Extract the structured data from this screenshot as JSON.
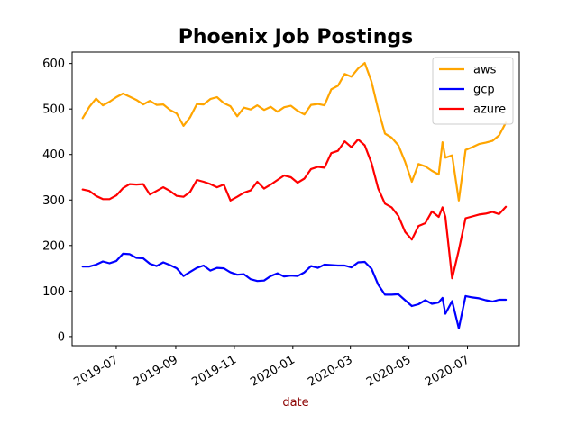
{
  "chart_data": {
    "type": "line",
    "title": "Phoenix Job Postings",
    "xlabel": "date",
    "ylabel": "",
    "xlim": [
      "2019-05-16",
      "2020-08-24"
    ],
    "ylim": [
      -20,
      625
    ],
    "yticks": [
      0,
      100,
      200,
      300,
      400,
      500,
      600
    ],
    "xticks": [
      {
        "date": "2019-07-01",
        "label": "2019-07"
      },
      {
        "date": "2019-09-01",
        "label": "2019-09"
      },
      {
        "date": "2019-11-01",
        "label": "2019-11"
      },
      {
        "date": "2020-01-01",
        "label": "2020-01"
      },
      {
        "date": "2020-03-01",
        "label": "2020-03"
      },
      {
        "date": "2020-05-01",
        "label": "2020-05"
      },
      {
        "date": "2020-07-01",
        "label": "2020-07"
      }
    ],
    "grid": false,
    "legend_position": "top-right",
    "series": [
      {
        "name": "aws",
        "color": "#ffa500",
        "points": [
          [
            "2019-05-27",
            480
          ],
          [
            "2019-06-03",
            505
          ],
          [
            "2019-06-10",
            523
          ],
          [
            "2019-06-17",
            508
          ],
          [
            "2019-06-24",
            516
          ],
          [
            "2019-07-01",
            526
          ],
          [
            "2019-07-08",
            534
          ],
          [
            "2019-07-15",
            527
          ],
          [
            "2019-07-22",
            520
          ],
          [
            "2019-07-29",
            510
          ],
          [
            "2019-08-05",
            518
          ],
          [
            "2019-08-12",
            509
          ],
          [
            "2019-08-19",
            510
          ],
          [
            "2019-08-26",
            498
          ],
          [
            "2019-09-02",
            490
          ],
          [
            "2019-09-09",
            463
          ],
          [
            "2019-09-16",
            482
          ],
          [
            "2019-09-23",
            511
          ],
          [
            "2019-09-30",
            510
          ],
          [
            "2019-10-07",
            522
          ],
          [
            "2019-10-14",
            526
          ],
          [
            "2019-10-21",
            513
          ],
          [
            "2019-10-28",
            506
          ],
          [
            "2019-11-04",
            484
          ],
          [
            "2019-11-11",
            503
          ],
          [
            "2019-11-18",
            499
          ],
          [
            "2019-11-25",
            508
          ],
          [
            "2019-12-02",
            498
          ],
          [
            "2019-12-09",
            505
          ],
          [
            "2019-12-16",
            494
          ],
          [
            "2019-12-23",
            504
          ],
          [
            "2019-12-30",
            507
          ],
          [
            "2020-01-06",
            496
          ],
          [
            "2020-01-13",
            488
          ],
          [
            "2020-01-20",
            509
          ],
          [
            "2020-01-27",
            511
          ],
          [
            "2020-02-03",
            508
          ],
          [
            "2020-02-10",
            543
          ],
          [
            "2020-02-17",
            551
          ],
          [
            "2020-02-24",
            577
          ],
          [
            "2020-03-02",
            571
          ],
          [
            "2020-03-09",
            589
          ],
          [
            "2020-03-16",
            601
          ],
          [
            "2020-03-23",
            560
          ],
          [
            "2020-03-30",
            499
          ],
          [
            "2020-04-06",
            446
          ],
          [
            "2020-04-13",
            437
          ],
          [
            "2020-04-20",
            420
          ],
          [
            "2020-04-27",
            384
          ],
          [
            "2020-05-04",
            340
          ],
          [
            "2020-05-11",
            379
          ],
          [
            "2020-05-18",
            374
          ],
          [
            "2020-05-25",
            364
          ],
          [
            "2020-06-01",
            356
          ],
          [
            "2020-06-05",
            427
          ],
          [
            "2020-06-08",
            393
          ],
          [
            "2020-06-15",
            398
          ],
          [
            "2020-06-22",
            299
          ],
          [
            "2020-06-29",
            410
          ],
          [
            "2020-07-06",
            416
          ],
          [
            "2020-07-13",
            423
          ],
          [
            "2020-07-20",
            426
          ],
          [
            "2020-07-27",
            430
          ],
          [
            "2020-08-03",
            442
          ],
          [
            "2020-08-10",
            470
          ]
        ]
      },
      {
        "name": "gcp",
        "color": "#0000ff",
        "points": [
          [
            "2019-05-27",
            154
          ],
          [
            "2019-06-03",
            154
          ],
          [
            "2019-06-10",
            158
          ],
          [
            "2019-06-17",
            165
          ],
          [
            "2019-06-24",
            161
          ],
          [
            "2019-07-01",
            166
          ],
          [
            "2019-07-08",
            182
          ],
          [
            "2019-07-15",
            181
          ],
          [
            "2019-07-22",
            173
          ],
          [
            "2019-07-29",
            172
          ],
          [
            "2019-08-05",
            160
          ],
          [
            "2019-08-12",
            155
          ],
          [
            "2019-08-19",
            163
          ],
          [
            "2019-08-26",
            157
          ],
          [
            "2019-09-02",
            150
          ],
          [
            "2019-09-09",
            133
          ],
          [
            "2019-09-16",
            142
          ],
          [
            "2019-09-23",
            151
          ],
          [
            "2019-09-30",
            156
          ],
          [
            "2019-10-07",
            145
          ],
          [
            "2019-10-14",
            151
          ],
          [
            "2019-10-21",
            150
          ],
          [
            "2019-10-28",
            141
          ],
          [
            "2019-11-04",
            136
          ],
          [
            "2019-11-11",
            137
          ],
          [
            "2019-11-18",
            126
          ],
          [
            "2019-11-25",
            122
          ],
          [
            "2019-12-02",
            123
          ],
          [
            "2019-12-09",
            133
          ],
          [
            "2019-12-16",
            139
          ],
          [
            "2019-12-23",
            132
          ],
          [
            "2019-12-30",
            134
          ],
          [
            "2020-01-06",
            133
          ],
          [
            "2020-01-13",
            141
          ],
          [
            "2020-01-20",
            155
          ],
          [
            "2020-01-27",
            151
          ],
          [
            "2020-02-03",
            158
          ],
          [
            "2020-02-10",
            157
          ],
          [
            "2020-02-17",
            156
          ],
          [
            "2020-02-24",
            156
          ],
          [
            "2020-03-02",
            152
          ],
          [
            "2020-03-09",
            163
          ],
          [
            "2020-03-16",
            164
          ],
          [
            "2020-03-23",
            149
          ],
          [
            "2020-03-30",
            114
          ],
          [
            "2020-04-06",
            92
          ],
          [
            "2020-04-13",
            92
          ],
          [
            "2020-04-20",
            93
          ],
          [
            "2020-04-27",
            80
          ],
          [
            "2020-05-04",
            67
          ],
          [
            "2020-05-11",
            71
          ],
          [
            "2020-05-18",
            80
          ],
          [
            "2020-05-25",
            72
          ],
          [
            "2020-06-01",
            75
          ],
          [
            "2020-06-05",
            85
          ],
          [
            "2020-06-08",
            50
          ],
          [
            "2020-06-15",
            78
          ],
          [
            "2020-06-22",
            18
          ],
          [
            "2020-06-29",
            89
          ],
          [
            "2020-07-06",
            86
          ],
          [
            "2020-07-13",
            84
          ],
          [
            "2020-07-20",
            80
          ],
          [
            "2020-07-27",
            77
          ],
          [
            "2020-08-03",
            81
          ],
          [
            "2020-08-10",
            81
          ]
        ]
      },
      {
        "name": "azure",
        "color": "#ff0000",
        "points": [
          [
            "2019-05-27",
            323
          ],
          [
            "2019-06-03",
            320
          ],
          [
            "2019-06-10",
            309
          ],
          [
            "2019-06-17",
            302
          ],
          [
            "2019-06-24",
            302
          ],
          [
            "2019-07-01",
            310
          ],
          [
            "2019-07-08",
            326
          ],
          [
            "2019-07-15",
            335
          ],
          [
            "2019-07-22",
            334
          ],
          [
            "2019-07-29",
            335
          ],
          [
            "2019-08-05",
            312
          ],
          [
            "2019-08-12",
            320
          ],
          [
            "2019-08-19",
            328
          ],
          [
            "2019-08-26",
            320
          ],
          [
            "2019-09-02",
            309
          ],
          [
            "2019-09-09",
            307
          ],
          [
            "2019-09-16",
            318
          ],
          [
            "2019-09-23",
            344
          ],
          [
            "2019-09-30",
            340
          ],
          [
            "2019-10-07",
            335
          ],
          [
            "2019-10-14",
            328
          ],
          [
            "2019-10-21",
            334
          ],
          [
            "2019-10-28",
            299
          ],
          [
            "2019-11-04",
            307
          ],
          [
            "2019-11-11",
            316
          ],
          [
            "2019-11-18",
            321
          ],
          [
            "2019-11-25",
            340
          ],
          [
            "2019-12-02",
            325
          ],
          [
            "2019-12-09",
            334
          ],
          [
            "2019-12-16",
            344
          ],
          [
            "2019-12-23",
            354
          ],
          [
            "2019-12-30",
            350
          ],
          [
            "2020-01-06",
            338
          ],
          [
            "2020-01-13",
            347
          ],
          [
            "2020-01-20",
            368
          ],
          [
            "2020-01-27",
            373
          ],
          [
            "2020-02-03",
            371
          ],
          [
            "2020-02-10",
            403
          ],
          [
            "2020-02-17",
            408
          ],
          [
            "2020-02-24",
            429
          ],
          [
            "2020-03-02",
            416
          ],
          [
            "2020-03-09",
            433
          ],
          [
            "2020-03-16",
            420
          ],
          [
            "2020-03-23",
            381
          ],
          [
            "2020-03-30",
            325
          ],
          [
            "2020-04-06",
            292
          ],
          [
            "2020-04-13",
            284
          ],
          [
            "2020-04-20",
            265
          ],
          [
            "2020-04-27",
            230
          ],
          [
            "2020-05-04",
            213
          ],
          [
            "2020-05-11",
            243
          ],
          [
            "2020-05-18",
            249
          ],
          [
            "2020-05-25",
            275
          ],
          [
            "2020-06-01",
            263
          ],
          [
            "2020-06-05",
            284
          ],
          [
            "2020-06-08",
            263
          ],
          [
            "2020-06-15",
            128
          ],
          [
            "2020-06-22",
            190
          ],
          [
            "2020-06-29",
            260
          ],
          [
            "2020-07-06",
            264
          ],
          [
            "2020-07-13",
            268
          ],
          [
            "2020-07-20",
            270
          ],
          [
            "2020-07-27",
            274
          ],
          [
            "2020-08-03",
            269
          ],
          [
            "2020-08-10",
            285
          ]
        ]
      }
    ]
  }
}
